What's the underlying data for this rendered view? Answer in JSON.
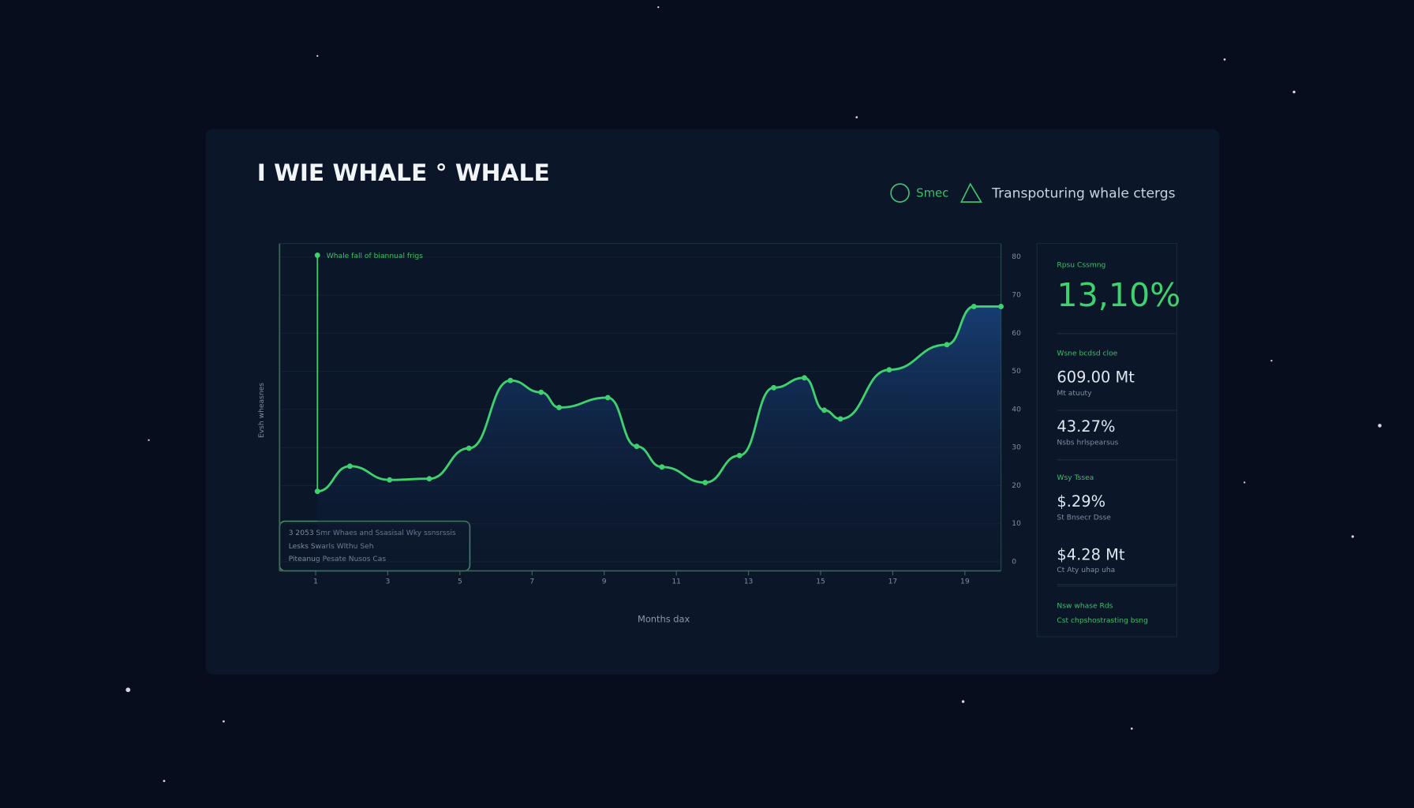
{
  "header": {
    "title": "I WIE WHALE ° WHALE",
    "legend": [
      "Smec",
      "Transpoturing whale ctergs"
    ]
  },
  "chart_data": {
    "type": "line",
    "annotation": "Whale fall of biannual frigs",
    "ylabel": "Evsh wheasnes",
    "xlabel": "Months dax",
    "x": [
      1.05,
      1.95,
      3.05,
      4.15,
      5.25,
      6.4,
      7.25,
      7.75,
      9.1,
      9.9,
      10.6,
      11.8,
      12.75,
      13.7,
      14.55,
      15.1,
      15.55,
      16.9,
      18.5,
      19.25,
      20
    ],
    "series": [
      {
        "name": "Transpoturing whale ctergs",
        "color": "#3fd16e",
        "values": [
          18.5,
          25.1,
          21.5,
          21.8,
          29.8,
          47.6,
          44.5,
          40.5,
          43.1,
          30.3,
          24.9,
          20.8,
          27.9,
          45.7,
          48.3,
          39.8,
          37.5,
          50.4,
          57,
          67,
          67
        ]
      }
    ],
    "xlim": [
      0,
      20
    ],
    "xticks": [
      1,
      3,
      5,
      7,
      9,
      11,
      13,
      15,
      17,
      19
    ],
    "ylim": [
      0,
      80
    ],
    "yticks": [
      0,
      10,
      20,
      30,
      40,
      50,
      60,
      70,
      80
    ],
    "grid": true
  },
  "info_box": [
    "3 2053 Smr Whaes and Ssasisal Wky ssnsrssis",
    "Lesks Swarls Wlthu Seh",
    "Piteanug Pesate Nusos Cas"
  ],
  "side_panel": [
    {
      "label": "Rpsu Cssmng",
      "value": "13,10%"
    },
    {
      "label": "Wsne bcdsd cloe",
      "value": "609.00 Mt",
      "note": "Mt atuuty"
    },
    {
      "value": "43.27%",
      "note": "Nsbs hrlspearsus"
    },
    {
      "label": "Wsy Tssea",
      "value": "$.29%",
      "note": "St Bnsecr Dsse"
    },
    {
      "value": "$4.28 Mt",
      "note": "Ct Aty uhap uha"
    },
    {
      "label": "Nsw whase Rds",
      "note": "Cst chpshostrasting bsng"
    }
  ]
}
